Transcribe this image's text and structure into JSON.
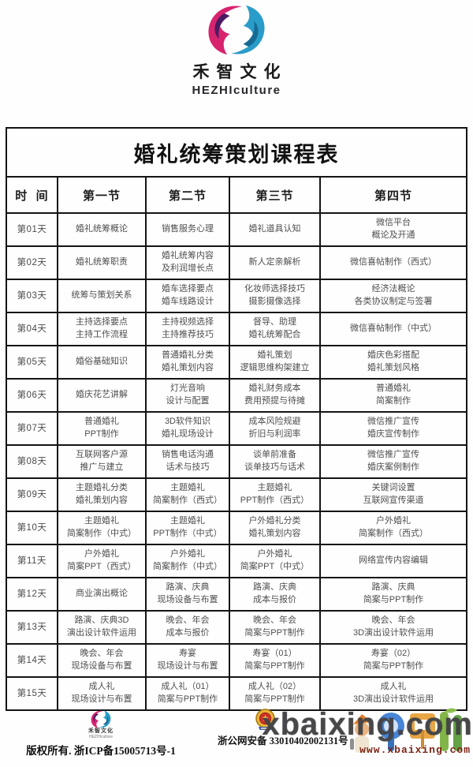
{
  "brand": {
    "name_cn": "禾智文化",
    "name_en": "HEZHIculture"
  },
  "table": {
    "title": "婚礼统筹策划课程表",
    "headers": [
      "时  间",
      "第一节",
      "第二节",
      "第三节",
      "第四节"
    ],
    "rows": [
      {
        "day": "第01天",
        "cells": [
          "婚礼统筹概论",
          "销售服务心理",
          "婚礼道具认知",
          "微信平台\n概论及开通"
        ]
      },
      {
        "day": "第02天",
        "cells": [
          "婚礼统筹职责",
          "婚礼统筹内容\n及利润增长点",
          "新人定亲解析",
          "微信喜帖制作（西式）"
        ]
      },
      {
        "day": "第03天",
        "cells": [
          "统筹与策划关系",
          "婚车选择要点\n婚车线路设计",
          "化妆师选择技巧\n摄影摄像选择",
          "经济法概论\n各类协议制定与签署"
        ]
      },
      {
        "day": "第04天",
        "cells": [
          "主持选择要点\n主持工作流程",
          "主持视频选择\n主持推荐技巧",
          "督导、助理\n婚礼统筹配合",
          "微信喜帖制作（中式）"
        ]
      },
      {
        "day": "第05天",
        "cells": [
          "婚俗基础知识",
          "普通婚礼分类\n婚礼策划内容",
          "婚礼策划\n逻辑思维构架建立",
          "婚庆色彩搭配\n婚礼策划风格"
        ]
      },
      {
        "day": "第06天",
        "cells": [
          "婚庆花艺讲解",
          "灯光音响\n设计与配置",
          "婚礼财务成本\n费用预提与待摊",
          "普通婚礼\n简案制作"
        ]
      },
      {
        "day": "第07天",
        "cells": [
          "普通婚礼\nPPT制作",
          "3D软件知识\n婚礼现场设计",
          "成本风险规避\n折旧与利润率",
          "微信推广宣传\n婚庆宣传制作"
        ]
      },
      {
        "day": "第08天",
        "cells": [
          "互联网客户源\n推广与建立",
          "销售电话沟通\n话术与技巧",
          "谈单前准备\n谈单技巧与话术",
          "微信推广宣传\n婚庆案例制作"
        ]
      },
      {
        "day": "第09天",
        "cells": [
          "主题婚礼分类\n婚礼策划内容",
          "主题婚礼\n简案制作（西式）",
          "主题婚礼\nPPT制作（西式）",
          "关键词设置\n互联网宣传渠道"
        ]
      },
      {
        "day": "第10天",
        "cells": [
          "主题婚礼\n简案制作（中式）",
          "主题婚礼\nPPT制作（中式）",
          "户外婚礼分类\n婚礼策划内容",
          "户外婚礼\n简案制作（西式）"
        ]
      },
      {
        "day": "第11天",
        "cells": [
          "户外婚礼\n简案PPT（西式）",
          "户外婚礼\n简案制作（中式）",
          "户外婚礼\n简案PPT（中式）",
          "网络宣传内容编辑"
        ]
      },
      {
        "day": "第12天",
        "cells": [
          "商业演出概论",
          "路演、庆典\n现场设备与布置",
          "路演、庆典\n成本与报价",
          "路演、庆典\n简案与PPT制作"
        ]
      },
      {
        "day": "第13天",
        "cells": [
          "路演、庆典3D\n演出设计软件运用",
          "晚会、年会\n成本与报价",
          "晚会、年会\n简案与PPT制作",
          "晚会、年会\n3D演出设计软件运用"
        ]
      },
      {
        "day": "第14天",
        "cells": [
          "晚会、年会\n现场设备与布置",
          "寿宴\n现场设计与布置",
          "寿宴（01）\n简案与PPT制作",
          "寿宴（02）\n简案与PPT制作"
        ]
      },
      {
        "day": "第15天",
        "cells": [
          "成人礼\n现场设计与布置",
          "成人礼（01）\n简案与PPT制作",
          "成人礼（02）\n简案与PPT制作",
          "成人礼\n3D演出设计软件运用"
        ]
      }
    ]
  },
  "footer": {
    "brand_cn": "禾智文化",
    "brand_en": "HEZHIculture",
    "icp": "版权所有. 浙ICP备15005713号-1",
    "police": "浙公网安备 33010402002131号",
    "watermark_large": "xbaixing.com",
    "watermark_url": "www.xbaixing.com"
  },
  "colors": {
    "logo_pink": "#d8246f",
    "logo_purple": "#4a1b63",
    "logo_blue": "#2a9cc9",
    "logo_blue_dark": "#156a94",
    "watermark_gray": "#49494c",
    "watermark_red": "#7c2314",
    "border": "#141414"
  }
}
